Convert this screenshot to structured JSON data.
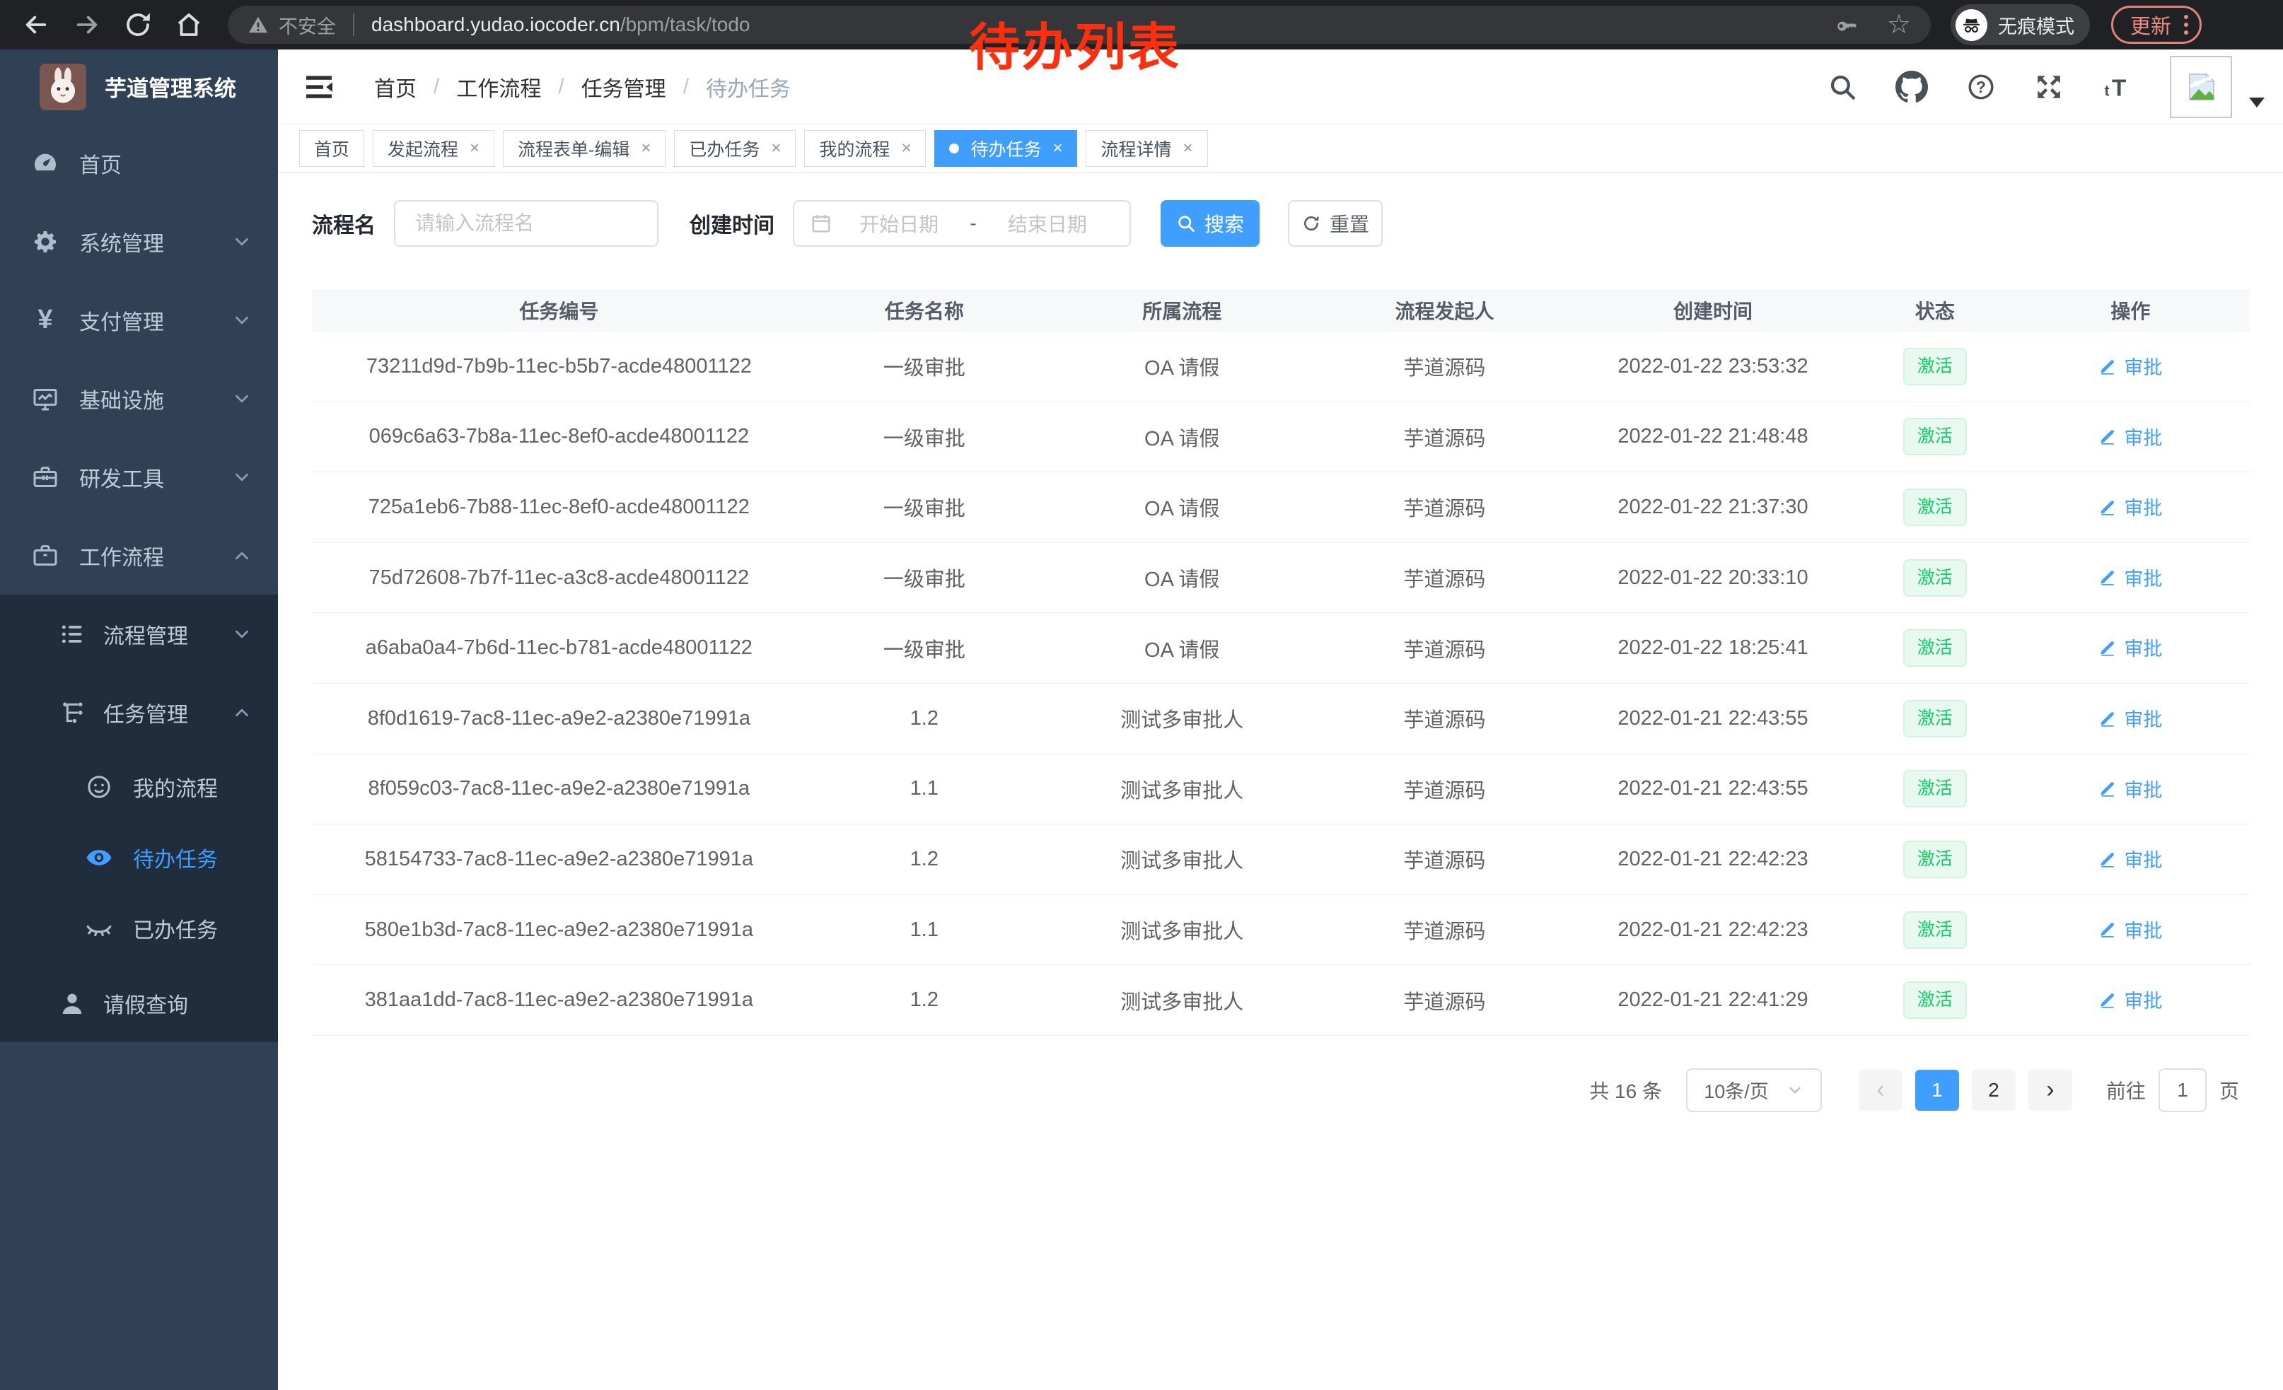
{
  "browser": {
    "security_label": "不安全",
    "url_host": "dashboard.yudao.iocoder.cn",
    "url_path": "/bpm/task/todo",
    "incognito_label": "无痕模式",
    "update_label": "更新"
  },
  "annotation": "待办列表",
  "ui": {
    "close_glyph": "×",
    "star_glyph": "☆"
  },
  "sidebar": {
    "title": "芋道管理系统",
    "menu": [
      {
        "label": "首页",
        "icon": "dashboard",
        "level": 1
      },
      {
        "label": "系统管理",
        "icon": "gear",
        "level": 1,
        "chevron": "down"
      },
      {
        "label": "支付管理",
        "icon": "yen",
        "level": 1,
        "chevron": "down"
      },
      {
        "label": "基础设施",
        "icon": "monitor",
        "level": 1,
        "chevron": "down"
      },
      {
        "label": "研发工具",
        "icon": "toolbox",
        "level": 1,
        "chevron": "down"
      },
      {
        "label": "工作流程",
        "icon": "briefcase",
        "level": 1,
        "chevron": "up"
      },
      {
        "label": "流程管理",
        "icon": "list",
        "level": 2,
        "chevron": "down",
        "dark": true
      },
      {
        "label": "任务管理",
        "icon": "tree",
        "level": 2,
        "chevron": "up",
        "dark": true
      },
      {
        "label": "我的流程",
        "icon": "face",
        "level": 3,
        "dark": true
      },
      {
        "label": "待办任务",
        "icon": "eye",
        "level": 3,
        "dark": true,
        "active": true
      },
      {
        "label": "已办任务",
        "icon": "eye-closed",
        "level": 3,
        "dark": true
      },
      {
        "label": "请假查询",
        "icon": "person",
        "level": 2,
        "dark": true
      }
    ]
  },
  "breadcrumb": {
    "separator": "/",
    "items": [
      "首页",
      "工作流程",
      "任务管理",
      "待办任务"
    ]
  },
  "tabs": [
    {
      "label": "首页"
    },
    {
      "label": "发起流程",
      "closable": true
    },
    {
      "label": "流程表单-编辑",
      "closable": true
    },
    {
      "label": "已办任务",
      "closable": true
    },
    {
      "label": "我的流程",
      "closable": true
    },
    {
      "label": "待办任务",
      "closable": true,
      "active": true
    },
    {
      "label": "流程详情",
      "closable": true
    }
  ],
  "filters": {
    "name_label": "流程名",
    "name_placeholder": "请输入流程名",
    "time_label": "创建时间",
    "start_placeholder": "开始日期",
    "range_separator": "-",
    "end_placeholder": "结束日期",
    "search_label": "搜索",
    "reset_label": "重置"
  },
  "table": {
    "columns": [
      "任务编号",
      "任务名称",
      "所属流程",
      "流程发起人",
      "创建时间",
      "状态",
      "操作"
    ],
    "rows": [
      {
        "id": "73211d9d-7b9b-11ec-b5b7-acde48001122",
        "name": "一级审批",
        "process": "OA 请假",
        "starter": "芋道源码",
        "created": "2022-01-22 23:53:32",
        "status": "激活",
        "action": "审批"
      },
      {
        "id": "069c6a63-7b8a-11ec-8ef0-acde48001122",
        "name": "一级审批",
        "process": "OA 请假",
        "starter": "芋道源码",
        "created": "2022-01-22 21:48:48",
        "status": "激活",
        "action": "审批"
      },
      {
        "id": "725a1eb6-7b88-11ec-8ef0-acde48001122",
        "name": "一级审批",
        "process": "OA 请假",
        "starter": "芋道源码",
        "created": "2022-01-22 21:37:30",
        "status": "激活",
        "action": "审批"
      },
      {
        "id": "75d72608-7b7f-11ec-a3c8-acde48001122",
        "name": "一级审批",
        "process": "OA 请假",
        "starter": "芋道源码",
        "created": "2022-01-22 20:33:10",
        "status": "激活",
        "action": "审批"
      },
      {
        "id": "a6aba0a4-7b6d-11ec-b781-acde48001122",
        "name": "一级审批",
        "process": "OA 请假",
        "starter": "芋道源码",
        "created": "2022-01-22 18:25:41",
        "status": "激活",
        "action": "审批"
      },
      {
        "id": "8f0d1619-7ac8-11ec-a9e2-a2380e71991a",
        "name": "1.2",
        "process": "测试多审批人",
        "starter": "芋道源码",
        "created": "2022-01-21 22:43:55",
        "status": "激活",
        "action": "审批"
      },
      {
        "id": "8f059c03-7ac8-11ec-a9e2-a2380e71991a",
        "name": "1.1",
        "process": "测试多审批人",
        "starter": "芋道源码",
        "created": "2022-01-21 22:43:55",
        "status": "激活",
        "action": "审批"
      },
      {
        "id": "58154733-7ac8-11ec-a9e2-a2380e71991a",
        "name": "1.2",
        "process": "测试多审批人",
        "starter": "芋道源码",
        "created": "2022-01-21 22:42:23",
        "status": "激活",
        "action": "审批"
      },
      {
        "id": "580e1b3d-7ac8-11ec-a9e2-a2380e71991a",
        "name": "1.1",
        "process": "测试多审批人",
        "starter": "芋道源码",
        "created": "2022-01-21 22:42:23",
        "status": "激活",
        "action": "审批"
      },
      {
        "id": "381aa1dd-7ac8-11ec-a9e2-a2380e71991a",
        "name": "1.2",
        "process": "测试多审批人",
        "starter": "芋道源码",
        "created": "2022-01-21 22:41:29",
        "status": "激活",
        "action": "审批"
      }
    ]
  },
  "pagination": {
    "total": "共 16 条",
    "page_size": "10条/页",
    "prev_glyph": "‹",
    "next_glyph": "›",
    "pages": [
      "1",
      "2"
    ],
    "active_page": "1",
    "goto_label": "前往",
    "goto_value": "1",
    "page_unit": "页"
  },
  "colors": {
    "primary": "#409eff",
    "success_text": "#13ce66",
    "success_bg": "#e8faf0",
    "sidebar_bg": "#304156",
    "submenu_bg": "#1f2d3d",
    "annotation": "#ff2f0e"
  }
}
